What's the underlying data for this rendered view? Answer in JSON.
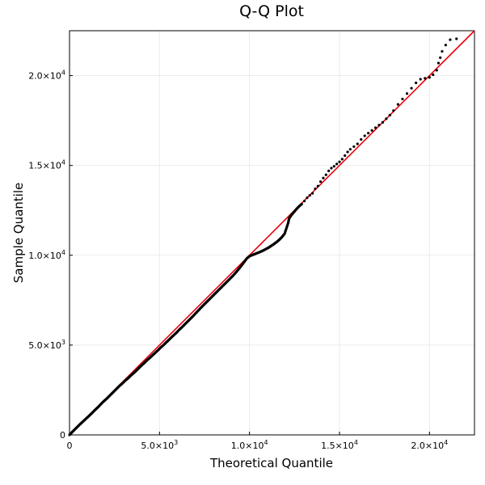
{
  "chart_data": {
    "type": "scatter",
    "title": "Q-Q Plot",
    "xlabel": "Theoretical Quantile",
    "ylabel": "Sample Quantile",
    "xlim": [
      0,
      22500
    ],
    "ylim": [
      0,
      22500
    ],
    "grid": true,
    "legend": "none",
    "x_ticks": [
      {
        "value": 0,
        "mantissa": "0",
        "exp": ""
      },
      {
        "value": 5000,
        "mantissa": "5.0×10",
        "exp": "3"
      },
      {
        "value": 10000,
        "mantissa": "1.0×10",
        "exp": "4"
      },
      {
        "value": 15000,
        "mantissa": "1.5×10",
        "exp": "4"
      },
      {
        "value": 20000,
        "mantissa": "2.0×10",
        "exp": "4"
      }
    ],
    "y_ticks": [
      {
        "value": 0,
        "mantissa": "0",
        "exp": ""
      },
      {
        "value": 5000,
        "mantissa": "5.0×10",
        "exp": "3"
      },
      {
        "value": 10000,
        "mantissa": "1.0×10",
        "exp": "4"
      },
      {
        "value": 15000,
        "mantissa": "1.5×10",
        "exp": "4"
      },
      {
        "value": 20000,
        "mantissa": "2.0×10",
        "exp": "4"
      }
    ],
    "reference_line": {
      "from": [
        0,
        0
      ],
      "to": [
        22500,
        22500
      ],
      "color": "#e8000b"
    },
    "point_color": "#000000",
    "points": [
      [
        0,
        0
      ],
      [
        120,
        130
      ],
      [
        250,
        260
      ],
      [
        400,
        410
      ],
      [
        550,
        560
      ],
      [
        700,
        700
      ],
      [
        850,
        840
      ],
      [
        1000,
        980
      ],
      [
        1150,
        1120
      ],
      [
        1300,
        1270
      ],
      [
        1450,
        1420
      ],
      [
        1600,
        1560
      ],
      [
        1750,
        1720
      ],
      [
        1900,
        1870
      ],
      [
        2050,
        2000
      ],
      [
        2200,
        2150
      ],
      [
        2350,
        2300
      ],
      [
        2500,
        2450
      ],
      [
        2650,
        2600
      ],
      [
        2800,
        2750
      ],
      [
        2950,
        2880
      ],
      [
        3100,
        3030
      ],
      [
        3250,
        3150
      ],
      [
        3400,
        3300
      ],
      [
        3550,
        3430
      ],
      [
        3700,
        3570
      ],
      [
        3850,
        3720
      ],
      [
        4000,
        3870
      ],
      [
        4150,
        4000
      ],
      [
        4300,
        4150
      ],
      [
        4450,
        4280
      ],
      [
        4600,
        4420
      ],
      [
        4750,
        4560
      ],
      [
        4900,
        4700
      ],
      [
        5050,
        4850
      ],
      [
        5200,
        4980
      ],
      [
        5350,
        5130
      ],
      [
        5500,
        5270
      ],
      [
        5650,
        5420
      ],
      [
        5800,
        5560
      ],
      [
        5950,
        5700
      ],
      [
        6100,
        5860
      ],
      [
        6250,
        6000
      ],
      [
        6400,
        6150
      ],
      [
        6550,
        6300
      ],
      [
        6700,
        6450
      ],
      [
        6850,
        6600
      ],
      [
        7000,
        6760
      ],
      [
        7150,
        6920
      ],
      [
        7300,
        7080
      ],
      [
        7450,
        7230
      ],
      [
        7600,
        7380
      ],
      [
        7750,
        7530
      ],
      [
        7900,
        7680
      ],
      [
        8050,
        7830
      ],
      [
        8200,
        7980
      ],
      [
        8350,
        8130
      ],
      [
        8500,
        8280
      ],
      [
        8650,
        8430
      ],
      [
        8800,
        8580
      ],
      [
        8950,
        8730
      ],
      [
        9100,
        8880
      ],
      [
        9250,
        9050
      ],
      [
        9400,
        9230
      ],
      [
        9550,
        9420
      ],
      [
        9700,
        9620
      ],
      [
        9850,
        9820
      ],
      [
        10000,
        9950
      ],
      [
        10150,
        10010
      ],
      [
        10300,
        10070
      ],
      [
        10450,
        10130
      ],
      [
        10600,
        10190
      ],
      [
        10750,
        10260
      ],
      [
        10900,
        10340
      ],
      [
        11050,
        10420
      ],
      [
        11200,
        10520
      ],
      [
        11350,
        10620
      ],
      [
        11500,
        10730
      ],
      [
        11650,
        10860
      ],
      [
        11800,
        11010
      ],
      [
        11950,
        11200
      ],
      [
        12050,
        11500
      ],
      [
        12150,
        11800
      ],
      [
        12200,
        12050
      ],
      [
        12300,
        12200
      ],
      [
        12450,
        12380
      ],
      [
        12600,
        12560
      ],
      [
        12750,
        12720
      ],
      [
        12900,
        12850
      ],
      [
        13050,
        13020
      ],
      [
        13200,
        13200
      ],
      [
        13350,
        13330
      ],
      [
        13500,
        13450
      ],
      [
        13650,
        13700
      ],
      [
        13800,
        13850
      ],
      [
        13950,
        14100
      ],
      [
        14100,
        14300
      ],
      [
        14250,
        14480
      ],
      [
        14400,
        14700
      ],
      [
        14550,
        14850
      ],
      [
        14700,
        14950
      ],
      [
        14850,
        15080
      ],
      [
        15000,
        15200
      ],
      [
        15150,
        15350
      ],
      [
        15300,
        15550
      ],
      [
        15450,
        15750
      ],
      [
        15600,
        15900
      ],
      [
        15800,
        16050
      ],
      [
        16000,
        16200
      ],
      [
        16200,
        16450
      ],
      [
        16400,
        16650
      ],
      [
        16600,
        16800
      ],
      [
        16800,
        16950
      ],
      [
        17000,
        17100
      ],
      [
        17200,
        17250
      ],
      [
        17400,
        17400
      ],
      [
        17600,
        17600
      ],
      [
        17800,
        17800
      ],
      [
        18000,
        18050
      ],
      [
        18250,
        18400
      ],
      [
        18500,
        18700
      ],
      [
        18750,
        19000
      ],
      [
        19000,
        19300
      ],
      [
        19250,
        19600
      ],
      [
        19500,
        19800
      ],
      [
        19750,
        19850
      ],
      [
        20000,
        19900
      ],
      [
        20200,
        20050
      ],
      [
        20400,
        20300
      ],
      [
        20500,
        20700
      ],
      [
        20600,
        21000
      ],
      [
        20700,
        21350
      ],
      [
        20900,
        21700
      ],
      [
        21150,
        22000
      ],
      [
        21500,
        22050
      ]
    ]
  }
}
